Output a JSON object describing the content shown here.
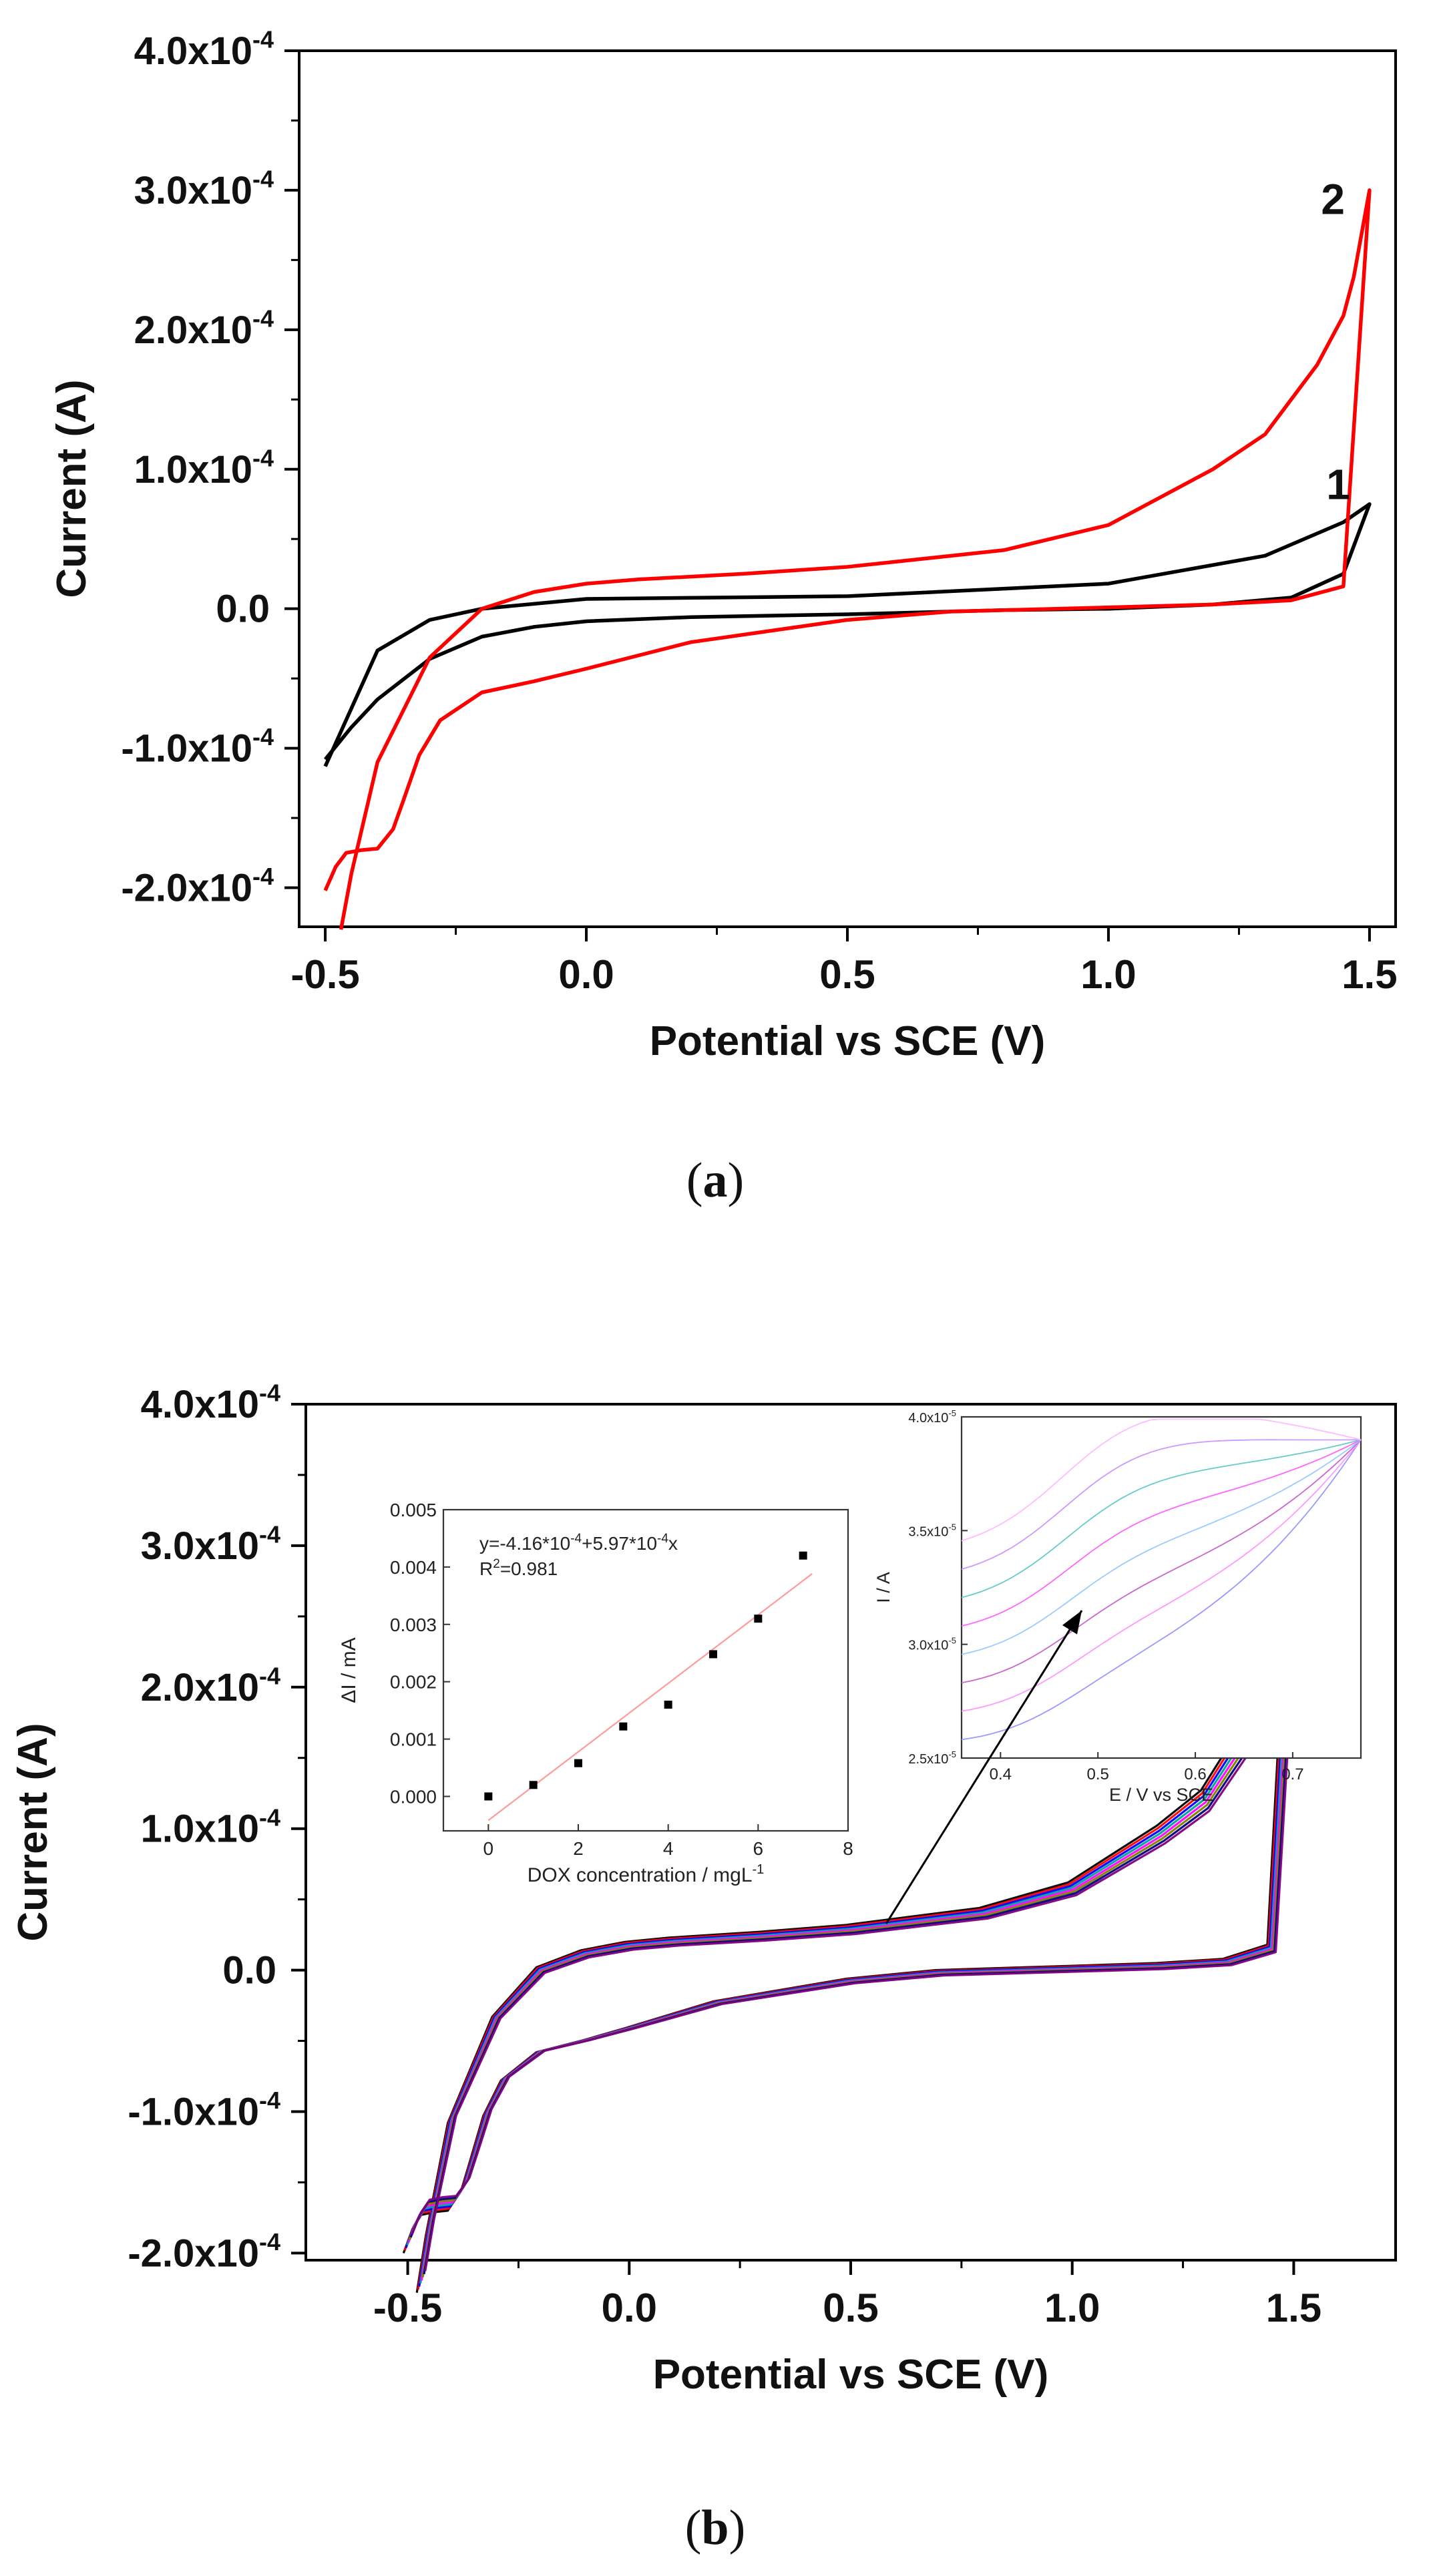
{
  "chart_data": [
    {
      "panel": "a",
      "type": "line",
      "xlabel": "Potential vs SCE (V)",
      "ylabel": "Current (A)",
      "xlim": [
        -0.55,
        1.55
      ],
      "ylim": [
        -0.000228,
        0.0004
      ],
      "xticks": [
        -0.5,
        0.0,
        0.5,
        1.0,
        1.5
      ],
      "xtick_labels": [
        "-0.5",
        "0.0",
        "0.5",
        "1.0",
        "1.5"
      ],
      "yticks": [
        -0.0002,
        -0.0001,
        0.0,
        0.0001,
        0.0002,
        0.0003,
        0.0004
      ],
      "ytick_mantissas": [
        "-2.0",
        "-1.0",
        "0.0",
        "1.0",
        "2.0",
        "3.0",
        "4.0"
      ],
      "ytick_exp_base": "x10",
      "ytick_exp": "-4",
      "ytick_zero_label": "0.0",
      "grid": false,
      "series": [
        {
          "name": "1",
          "color": "#000000",
          "x": [
            -0.5,
            -0.45,
            -0.4,
            -0.3,
            -0.2,
            -0.1,
            0.0,
            0.2,
            0.5,
            0.8,
            1.0,
            1.2,
            1.35,
            1.45,
            1.5,
            1.45,
            1.3,
            1.0,
            0.5,
            0.0,
            -0.2,
            -0.3,
            -0.4,
            -0.5
          ],
          "y": [
            -0.000108,
            -8.5e-05,
            -6.5e-05,
            -3.6e-05,
            -2e-05,
            -1.3e-05,
            -9e-06,
            -6e-06,
            -4e-06,
            -1e-06,
            0.0,
            3e-06,
            8e-06,
            2.5e-05,
            7.5e-05,
            6.2e-05,
            3.8e-05,
            1.8e-05,
            9e-06,
            7e-06,
            0.0,
            -8e-06,
            -3e-05,
            -0.000113
          ]
        },
        {
          "name": "2",
          "color": "#ff0000",
          "x": [
            -0.5,
            -0.48,
            -0.46,
            -0.43,
            -0.4,
            -0.37,
            -0.35,
            -0.32,
            -0.28,
            -0.2,
            -0.1,
            0.0,
            0.2,
            0.5,
            0.7,
            0.9,
            1.0,
            1.2,
            1.35,
            1.45,
            1.5,
            1.47,
            1.45,
            1.4,
            1.35,
            1.3,
            1.2,
            1.0,
            0.8,
            0.5,
            0.3,
            0.1,
            0.0,
            -0.1,
            -0.2,
            -0.3,
            -0.4,
            -0.45,
            -0.47
          ],
          "y": [
            -0.000202,
            -0.000185,
            -0.000175,
            -0.000173,
            -0.000172,
            -0.000158,
            -0.000137,
            -0.000105,
            -8e-05,
            -6e-05,
            -5.2e-05,
            -4.3e-05,
            -2.4e-05,
            -8e-06,
            -2e-06,
            0.0,
            1e-06,
            3e-06,
            6e-06,
            1.6e-05,
            0.0003,
            0.000238,
            0.00021,
            0.000175,
            0.00015,
            0.000125,
            0.0001,
            6e-05,
            4.2e-05,
            3e-05,
            2.5e-05,
            2.1e-05,
            1.8e-05,
            1.2e-05,
            0.0,
            -3.5e-05,
            -0.00011,
            -0.00019,
            -0.00023
          ]
        }
      ],
      "curve_labels": [
        {
          "text": "1",
          "x": 1.44,
          "y": 7.85e-05
        },
        {
          "text": "2",
          "x": 1.43,
          "y": 0.000283
        }
      ]
    },
    {
      "panel": "b",
      "type": "line",
      "xlabel": "Potential vs SCE (V)",
      "ylabel": "Current (A)",
      "xlim": [
        -0.73,
        1.73
      ],
      "ylim": [
        -0.000205,
        0.0004
      ],
      "xticks": [
        -0.5,
        0.0,
        0.5,
        1.0,
        1.5
      ],
      "xtick_labels": [
        "-0.5",
        "0.0",
        "0.5",
        "1.0",
        "1.5"
      ],
      "yticks": [
        -0.0002,
        -0.0001,
        0.0,
        0.0001,
        0.0002,
        0.0003,
        0.0004
      ],
      "ytick_mantissas": [
        "-2.0",
        "-1.0",
        "0.0",
        "1.0",
        "2.0",
        "3.0",
        "4.0"
      ],
      "ytick_exp_base": "x10",
      "ytick_exp": "-4",
      "ytick_zero_label": "0.0",
      "grid": false,
      "series_colors": [
        "#000000",
        "#ff0000",
        "#0000ff",
        "#00a0a0",
        "#ff00ff",
        "#808000",
        "#000080",
        "#800080"
      ],
      "base_curve": {
        "x": [
          -0.5,
          -0.48,
          -0.46,
          -0.43,
          -0.4,
          -0.37,
          -0.35,
          -0.32,
          -0.28,
          -0.2,
          -0.1,
          0.0,
          0.2,
          0.5,
          0.7,
          0.9,
          1.0,
          1.2,
          1.35,
          1.45,
          1.5,
          1.47,
          1.45,
          1.4,
          1.35,
          1.3,
          1.2,
          1.0,
          0.8,
          0.5,
          0.3,
          0.1,
          0.0,
          -0.1,
          -0.2,
          -0.3,
          -0.4,
          -0.45,
          -0.47
        ],
        "y": [
          -0.000202,
          -0.000185,
          -0.000175,
          -0.000173,
          -0.000172,
          -0.000158,
          -0.000137,
          -0.000105,
          -8e-05,
          -6e-05,
          -5.2e-05,
          -4.3e-05,
          -2.4e-05,
          -8e-06,
          -2e-06,
          0.0,
          1e-06,
          3e-06,
          6e-06,
          1.6e-05,
          0.000305,
          0.00024,
          0.00021,
          0.000175,
          0.00015,
          0.000125,
          0.0001,
          6e-05,
          4.2e-05,
          3e-05,
          2.5e-05,
          2.1e-05,
          1.8e-05,
          1.2e-05,
          0.0,
          -3.5e-05,
          -0.00011,
          -0.00019,
          -0.00023
        ]
      },
      "arrow": {
        "from": [
          0.58,
          3e-05
        ],
        "to_inset": "curves"
      },
      "insets": [
        {
          "name": "calibration",
          "type": "scatter",
          "xlabel": "DOX concentration / mgL",
          "xlabel_sup": "-1",
          "ylabel": "ΔI / mA",
          "xlim": [
            -1,
            8
          ],
          "ylim": [
            -0.0006,
            0.005
          ],
          "xticks": [
            0,
            2,
            4,
            6,
            8
          ],
          "xtick_labels": [
            "0",
            "2",
            "4",
            "6",
            "8"
          ],
          "yticks": [
            0.0,
            0.001,
            0.002,
            0.003,
            0.004,
            0.005
          ],
          "ytick_labels": [
            "0.000",
            "0.001",
            "0.002",
            "0.003",
            "0.004",
            "0.005"
          ],
          "x": [
            0,
            1,
            2,
            3,
            4,
            5,
            6,
            7
          ],
          "y": [
            0.0,
            0.0002,
            0.00058,
            0.00122,
            0.0016,
            0.00248,
            0.0031,
            0.0042
          ],
          "fit_line": {
            "x": [
              0,
              7.2
            ],
            "y": [
              -0.000416,
              0.003882
            ],
            "color": "#ff9a9a"
          },
          "equation": {
            "t1": "y=-4.16*10",
            "s1": "-4",
            "t2": "+5.97*10",
            "s2": "-4",
            "t3": "x"
          },
          "r2": {
            "t1": "R",
            "s1": "2",
            "t2": "=0.981"
          }
        },
        {
          "name": "curves",
          "type": "line",
          "xlabel": "E / V vs SCE",
          "ylabel": "I / A",
          "xlim": [
            0.36,
            0.77
          ],
          "ylim": [
            2.5e-05,
            4e-05
          ],
          "xticks": [
            0.4,
            0.5,
            0.6,
            0.7
          ],
          "xtick_labels": [
            "0.4",
            "0.5",
            "0.6",
            "0.7"
          ],
          "yticks": [
            2.5e-05,
            3e-05,
            3.5e-05,
            4e-05
          ],
          "ytick_mantissas": [
            "2.5x10",
            "3.0x10",
            "3.5x10",
            "4.0x10"
          ],
          "ytick_exp": "-5",
          "series_colors": [
            "#9999ff",
            "#ff99ff",
            "#cc66cc",
            "#99ccff",
            "#ff66ff",
            "#66cccc",
            "#cc99ff",
            "#ffbbff"
          ]
        }
      ]
    }
  ],
  "labels": {
    "a_open": "(",
    "a_letter": "a",
    "a_close": ")",
    "b_open": "(",
    "b_letter": "b",
    "b_close": ")"
  }
}
